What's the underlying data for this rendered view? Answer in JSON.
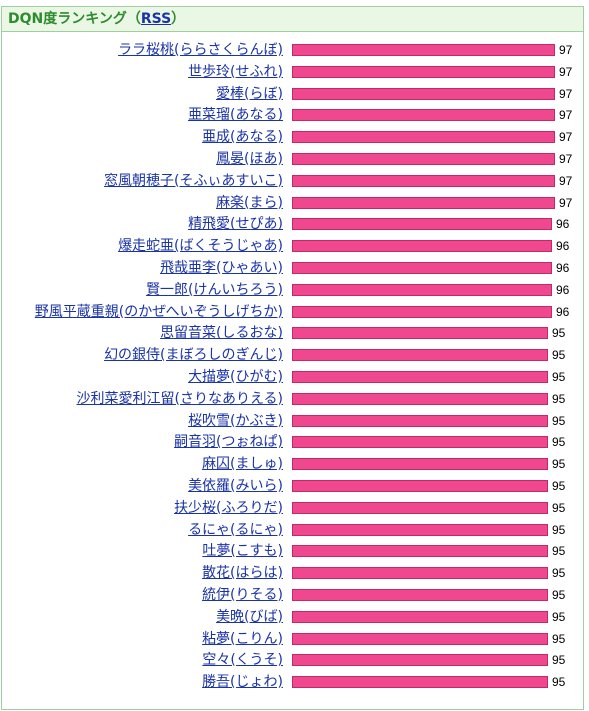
{
  "header": {
    "title_prefix": "DQN度ランキング（",
    "rss_label": "RSS",
    "title_suffix": "）"
  },
  "colors": {
    "bar": "#f0488f",
    "link": "#1a33a6",
    "header_bg": "#eaf7e4",
    "border": "#9fcf9f"
  },
  "ranking": [
    {
      "name": "ララ桜桃(ららさくらんぼ)",
      "score": 97
    },
    {
      "name": "世歩玲(せふれ)",
      "score": 97
    },
    {
      "name": "愛棒(らぼ)",
      "score": 97
    },
    {
      "name": "亜菜瑠(あなる)",
      "score": 97
    },
    {
      "name": "亜成(あなる)",
      "score": 97
    },
    {
      "name": "鳳晏(ほあ)",
      "score": 97
    },
    {
      "name": "窓風朝穂子(そふぃあすいこ)",
      "score": 97
    },
    {
      "name": "麻楽(まら)",
      "score": 97
    },
    {
      "name": "精飛愛(せぴあ)",
      "score": 96
    },
    {
      "name": "爆走蛇亜(ばくそうじゃあ)",
      "score": 96
    },
    {
      "name": "飛哉亜李(ひゃあい)",
      "score": 96
    },
    {
      "name": "賢一郎(けんいちろう)",
      "score": 96
    },
    {
      "name": "野風平蔵重親(のかぜへいぞうしげちか)",
      "score": 96
    },
    {
      "name": "思留音菜(しるおな)",
      "score": 95
    },
    {
      "name": "幻の銀侍(まぼろしのぎんじ)",
      "score": 95
    },
    {
      "name": "大描夢(ひがむ)",
      "score": 95
    },
    {
      "name": "沙利菜愛利江留(さりなありえる)",
      "score": 95
    },
    {
      "name": "桜吹雪(かぶき)",
      "score": 95
    },
    {
      "name": "嗣音羽(つぉねぱ)",
      "score": 95
    },
    {
      "name": "麻囚(ましゅ)",
      "score": 95
    },
    {
      "name": "美依羅(みいら)",
      "score": 95
    },
    {
      "name": "扶少桜(ふろりだ)",
      "score": 95
    },
    {
      "name": "るにゃ(るにゃ)",
      "score": 95
    },
    {
      "name": "吐夢(こすも)",
      "score": 95
    },
    {
      "name": "散花(はらは)",
      "score": 95
    },
    {
      "name": "統伊(りそる)",
      "score": 95
    },
    {
      "name": "美晩(びば)",
      "score": 95
    },
    {
      "name": "粘夢(こりん)",
      "score": 95
    },
    {
      "name": "空々(くうそ)",
      "score": 95
    },
    {
      "name": "勝吾(じょわ)",
      "score": 95
    }
  ]
}
